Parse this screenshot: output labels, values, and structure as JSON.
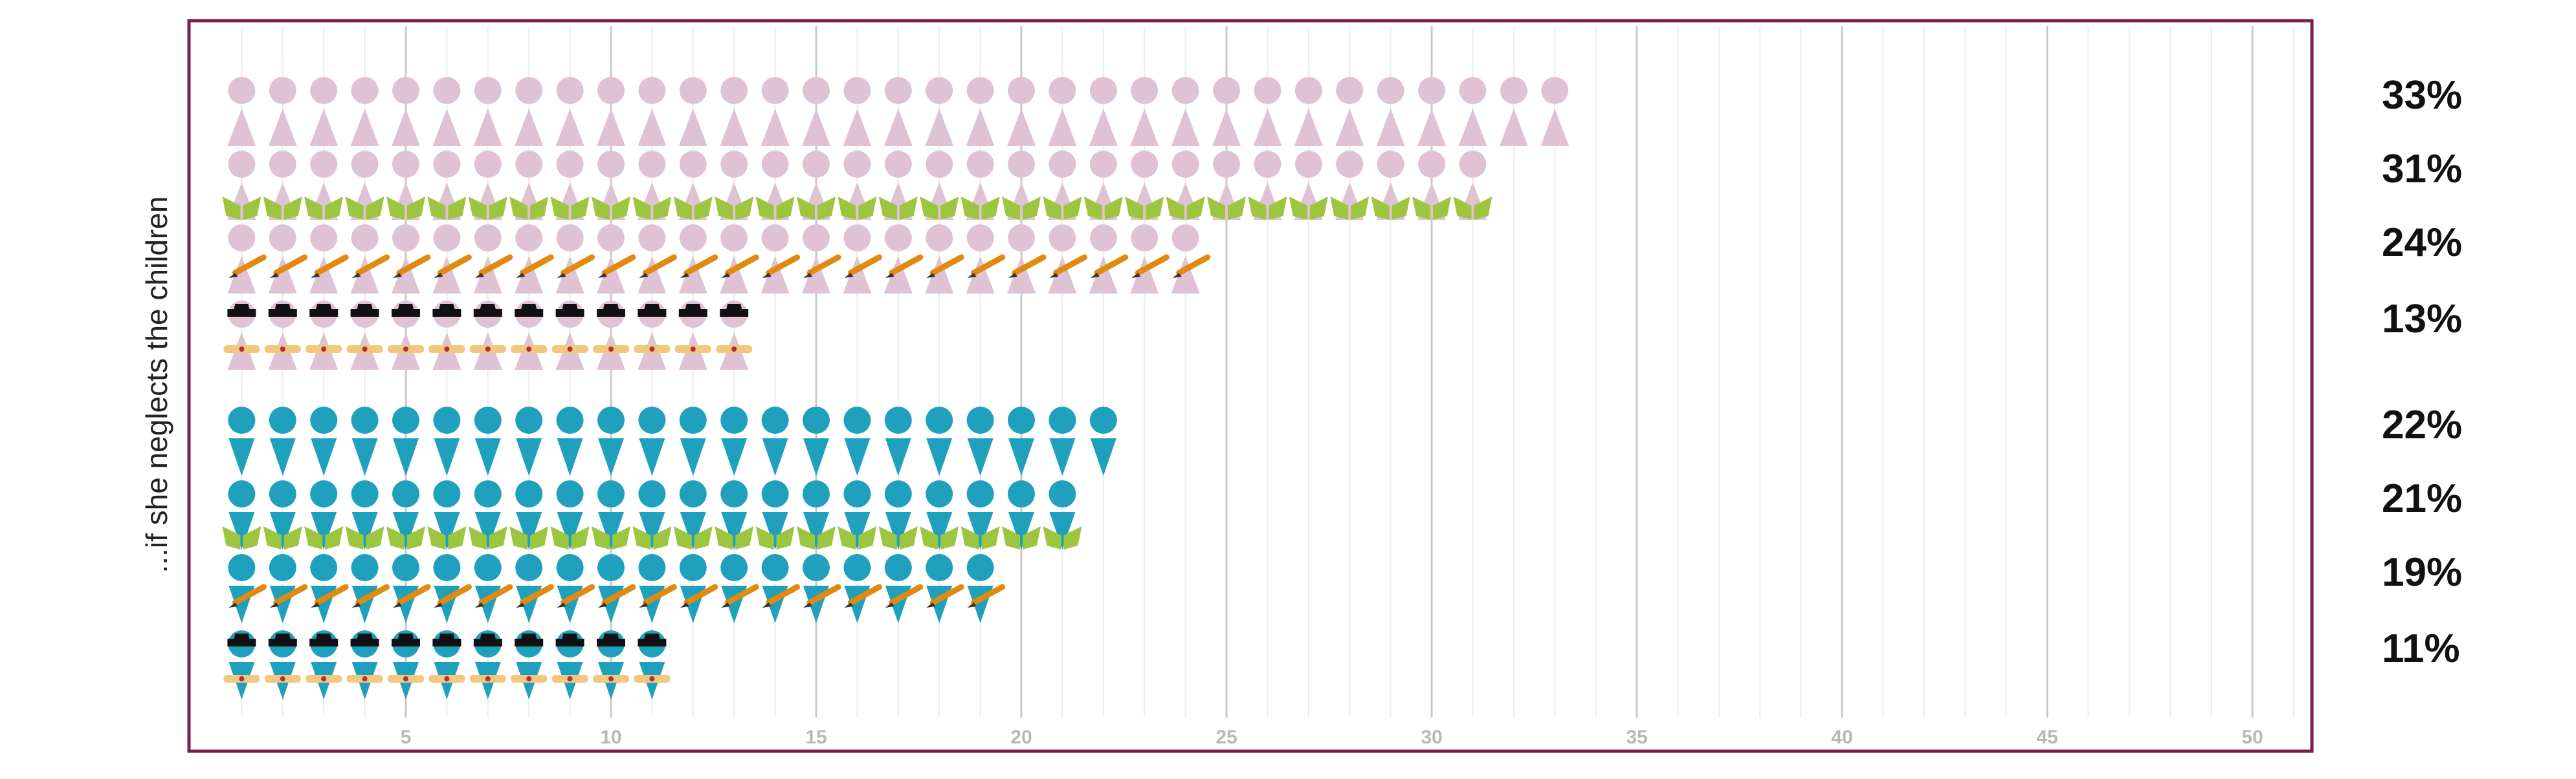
{
  "chart_data": {
    "type": "pictogram-bar",
    "ylabel": "...if she neglects the children",
    "xlim": [
      0,
      51
    ],
    "xticks": [
      5,
      10,
      15,
      20,
      25,
      30,
      35,
      40,
      45,
      50
    ],
    "grid": true,
    "series": [
      {
        "icon": "woman-icon",
        "group": "women",
        "value": 33,
        "label": "33%"
      },
      {
        "icon": "woman-book-icon",
        "group": "women",
        "value": 31,
        "label": "31%"
      },
      {
        "icon": "woman-pencil-icon",
        "group": "women",
        "value": 24,
        "label": "24%"
      },
      {
        "icon": "woman-graduate-icon",
        "group": "women",
        "value": 13,
        "label": "13%"
      },
      {
        "icon": "man-icon",
        "group": "men",
        "value": 22,
        "label": "22%"
      },
      {
        "icon": "man-book-icon",
        "group": "men",
        "value": 21,
        "label": "21%"
      },
      {
        "icon": "man-pencil-icon",
        "group": "men",
        "value": 19,
        "label": "19%"
      },
      {
        "icon": "man-graduate-icon",
        "group": "men",
        "value": 11,
        "label": "11%"
      }
    ]
  },
  "colors": {
    "frame": "#7a1f4a",
    "women": "#dfc3d5",
    "men": "#1fa0bc",
    "book": "#9cc640",
    "pencil": "#e08a10",
    "diploma": "#f2c77e",
    "cap": "#111111",
    "grid_major": "#c8c8c8",
    "grid_minor": "#ececec"
  }
}
